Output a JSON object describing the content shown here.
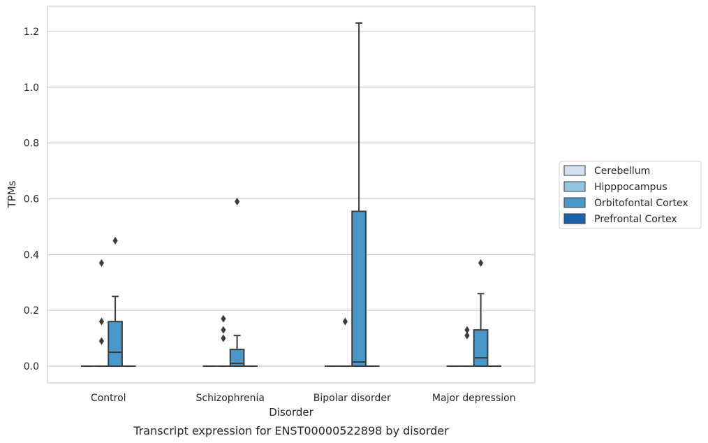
{
  "caption": "Transcript expression for ENST00000522898 by disorder",
  "chart_data": {
    "type": "box",
    "xlabel": "Disorder",
    "ylabel": "TPMs",
    "categories": [
      "Control",
      "Schizophrenia",
      "Bipolar disorder",
      "Major depression"
    ],
    "ylim": [
      -0.06,
      1.29
    ],
    "yticks": [
      "0.0",
      "0.2",
      "0.4",
      "0.6",
      "0.8",
      "1.0",
      "1.2"
    ],
    "grid": "horizontal",
    "legend_position": "right",
    "series": [
      {
        "name": "Cerebellum",
        "color": "#d0e1f2",
        "boxes": [
          {
            "q1": 0,
            "median": 0,
            "q3": 0,
            "whisker_low": 0,
            "whisker_high": 0,
            "outliers": []
          },
          {
            "q1": 0,
            "median": 0,
            "q3": 0,
            "whisker_low": 0,
            "whisker_high": 0,
            "outliers": []
          },
          {
            "q1": 0,
            "median": 0,
            "q3": 0,
            "whisker_low": 0,
            "whisker_high": 0,
            "outliers": []
          },
          {
            "q1": 0,
            "median": 0,
            "q3": 0,
            "whisker_low": 0,
            "whisker_high": 0,
            "outliers": []
          }
        ]
      },
      {
        "name": "Hipppocampus",
        "color": "#94c4df",
        "boxes": [
          {
            "q1": 0,
            "median": 0,
            "q3": 0,
            "whisker_low": 0,
            "whisker_high": 0,
            "outliers": [
              0.09,
              0.16,
              0.37
            ]
          },
          {
            "q1": 0,
            "median": 0,
            "q3": 0,
            "whisker_low": 0,
            "whisker_high": 0,
            "outliers": [
              0.1,
              0.13,
              0.17
            ]
          },
          {
            "q1": 0,
            "median": 0,
            "q3": 0,
            "whisker_low": 0,
            "whisker_high": 0,
            "outliers": [
              0.16
            ]
          },
          {
            "q1": 0,
            "median": 0,
            "q3": 0,
            "whisker_low": 0,
            "whisker_high": 0,
            "outliers": [
              0.11,
              0.13
            ]
          }
        ]
      },
      {
        "name": "Orbitofontal Cortex",
        "color": "#4a98c9",
        "boxes": [
          {
            "q1": 0,
            "median": 0.05,
            "q3": 0.16,
            "whisker_low": 0,
            "whisker_high": 0.25,
            "outliers": [
              0.45
            ]
          },
          {
            "q1": 0,
            "median": 0.01,
            "q3": 0.06,
            "whisker_low": 0,
            "whisker_high": 0.11,
            "outliers": [
              0.59
            ]
          },
          {
            "q1": 0,
            "median": 0.015,
            "q3": 0.555,
            "whisker_low": 0,
            "whisker_high": 1.23,
            "outliers": []
          },
          {
            "q1": 0,
            "median": 0.03,
            "q3": 0.13,
            "whisker_low": 0,
            "whisker_high": 0.26,
            "outliers": [
              0.37
            ]
          }
        ]
      },
      {
        "name": "Prefrontal Cortex",
        "color": "#1764ab",
        "boxes": [
          {
            "q1": 0,
            "median": 0,
            "q3": 0,
            "whisker_low": 0,
            "whisker_high": 0,
            "outliers": []
          },
          {
            "q1": 0,
            "median": 0,
            "q3": 0,
            "whisker_low": 0,
            "whisker_high": 0,
            "outliers": []
          },
          {
            "q1": 0,
            "median": 0,
            "q3": 0,
            "whisker_low": 0,
            "whisker_high": 0,
            "outliers": []
          },
          {
            "q1": 0,
            "median": 0,
            "q3": 0,
            "whisker_low": 0,
            "whisker_high": 0,
            "outliers": []
          }
        ]
      }
    ]
  }
}
